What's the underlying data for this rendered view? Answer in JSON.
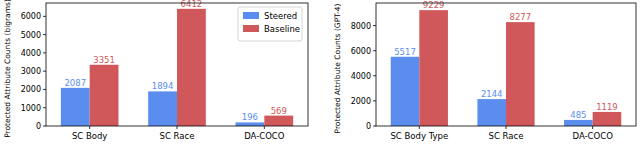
{
  "chart_data": [
    {
      "type": "bar",
      "y_label": "Protected Attribute Counts (bigrams)",
      "categories": [
        "SC Body",
        "SC Race",
        "DA-COCO"
      ],
      "series": [
        {
          "name": "Steered",
          "color": "#5b8def",
          "values": [
            2087,
            1894,
            196
          ]
        },
        {
          "name": "Baseline",
          "color": "#d0585a",
          "values": [
            3351,
            6412,
            569
          ]
        }
      ],
      "ylim": [
        0,
        6730
      ],
      "yticks": [
        0,
        1000,
        2000,
        3000,
        4000,
        5000,
        6000
      ],
      "legend": "upper right",
      "data_labels": true,
      "grid": false
    },
    {
      "type": "bar",
      "y_label": "Protected Attribute Counts (GPT-4)",
      "categories": [
        "SC Body Type",
        "SC Race",
        "DA-COCO"
      ],
      "series": [
        {
          "color": "#5b8def",
          "values": [
            5517,
            2144,
            485
          ]
        },
        {
          "color": "#d0585a",
          "values": [
            9229,
            8277,
            1119
          ]
        }
      ],
      "ylim": [
        0,
        9800
      ],
      "yticks": [
        0,
        2000,
        4000,
        6000,
        8000
      ],
      "data_labels": true,
      "grid": false
    }
  ]
}
